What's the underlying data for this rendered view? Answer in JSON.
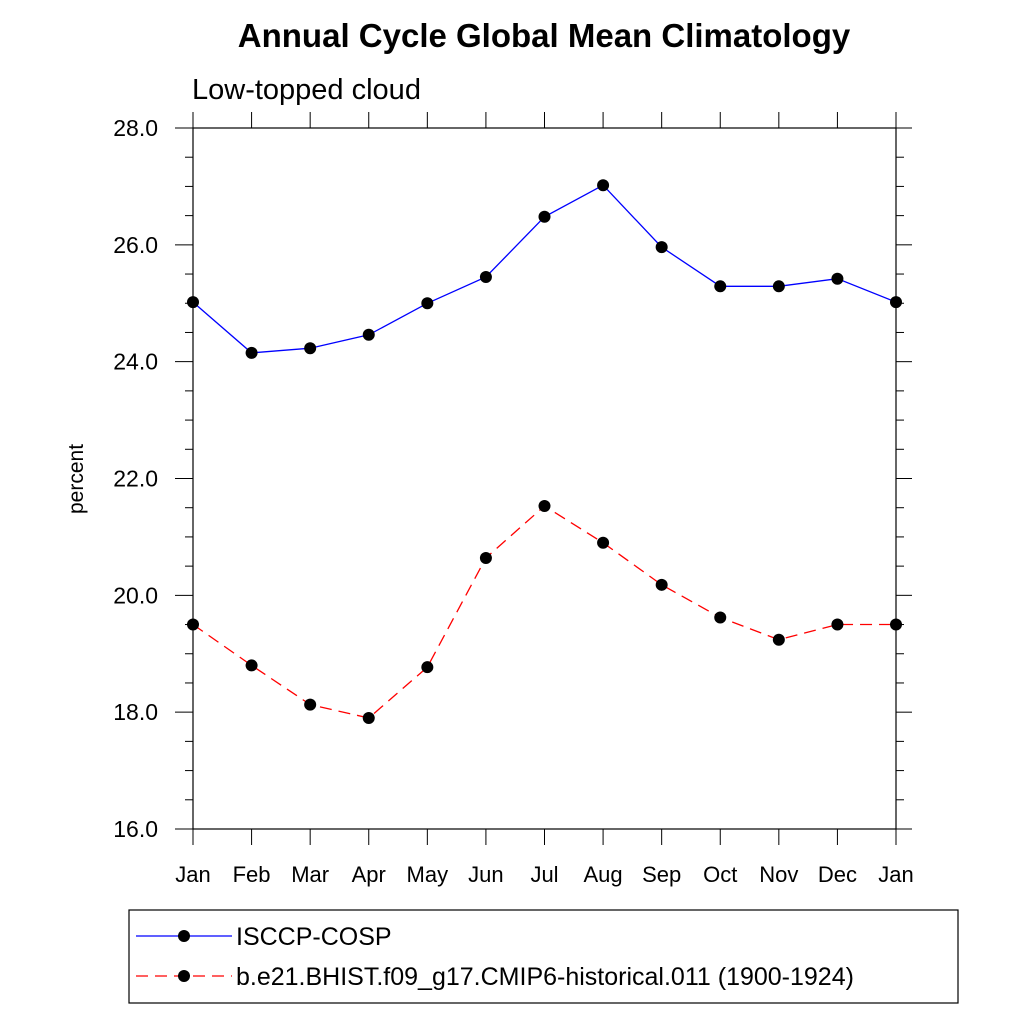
{
  "chart_data": {
    "type": "line",
    "title": "Annual Cycle Global Mean Climatology",
    "subtitle": "Low-topped cloud",
    "xlabel": "",
    "ylabel": "percent",
    "ylim": [
      16.0,
      28.0
    ],
    "yticks": [
      "16.0",
      "18.0",
      "20.0",
      "22.0",
      "24.0",
      "26.0",
      "28.0"
    ],
    "categories": [
      "Jan",
      "Feb",
      "Mar",
      "Apr",
      "May",
      "Jun",
      "Jul",
      "Aug",
      "Sep",
      "Oct",
      "Nov",
      "Dec",
      "Jan"
    ],
    "legend_position": "bottom",
    "series": [
      {
        "name": "ISCCP-COSP",
        "color": "#0000ff",
        "line_style": "solid",
        "marker": "circle",
        "values": [
          25.02,
          24.15,
          24.23,
          24.46,
          25.0,
          25.45,
          26.48,
          27.02,
          25.96,
          25.29,
          25.29,
          25.42,
          25.02
        ]
      },
      {
        "name": "b.e21.BHIST.f09_g17.CMIP6-historical.011 (1900-1924)",
        "color": "#ff0000",
        "line_style": "dashed",
        "marker": "circle",
        "values": [
          19.5,
          18.8,
          18.13,
          17.9,
          18.77,
          20.64,
          21.53,
          20.9,
          20.18,
          19.62,
          19.24,
          19.5,
          19.5
        ]
      }
    ]
  }
}
